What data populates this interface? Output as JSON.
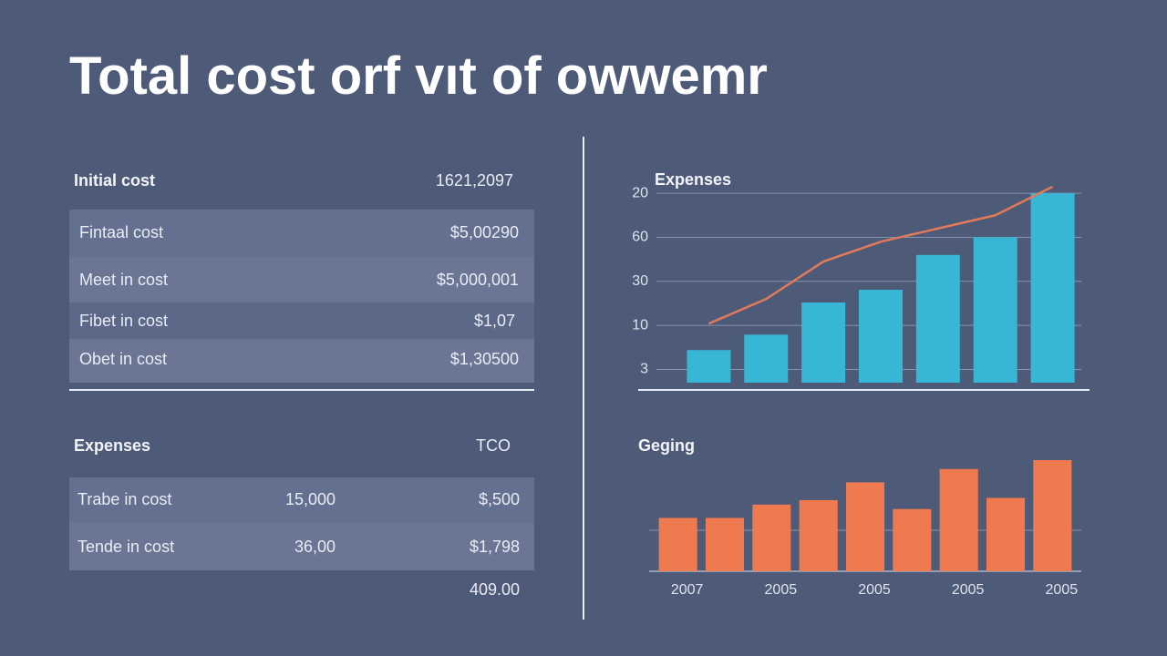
{
  "header": {
    "title": "Total cost orf vıt of owwemr"
  },
  "tables": [
    {
      "header": [
        "Initial cost",
        "1621,2097"
      ],
      "rows": [
        [
          "Fintaal cost",
          "$5,00290"
        ],
        [
          "Meet in cost",
          "$5,000,001"
        ],
        [
          "Fibet in cost",
          "$1,07"
        ],
        [
          "Obet in cost",
          "$1,30500"
        ]
      ]
    },
    {
      "header": [
        "Expenses",
        "TCO"
      ],
      "rows": [
        [
          "Trabe in cost",
          "15,000",
          "$,500"
        ],
        [
          "Tende in cost",
          "36,00",
          "$1,798"
        ]
      ],
      "footer": "409.00"
    }
  ],
  "chart_data": [
    {
      "type": "bar",
      "title": "Expenses",
      "categories": [
        null,
        null,
        null,
        null,
        null,
        null,
        null
      ],
      "series": [
        {
          "type": "bar",
          "color": "#38b6d6",
          "values": [
            0.44,
            0.79,
            1.52,
            1.81,
            2.6,
            3.0,
            4.0
          ]
        },
        {
          "type": "line",
          "color": "#e07a5a",
          "values": [
            1.04,
            1.6,
            2.45,
            2.9,
            3.2,
            3.5,
            4.15
          ]
        }
      ],
      "ylim": [
        -0.3,
        4.25
      ],
      "yticks": [
        {
          "value": 4,
          "label": "20"
        },
        {
          "value": 3,
          "label": "60"
        },
        {
          "value": 2,
          "label": "30"
        },
        {
          "value": 1,
          "label": "10"
        },
        {
          "value": 0,
          "label": "3"
        }
      ],
      "grid": true
    },
    {
      "type": "bar",
      "title": "Geging",
      "categories": [
        "2007",
        null,
        "2005",
        null,
        "2005",
        null,
        "2005",
        null,
        "2005"
      ],
      "color": "#f07a50",
      "values": [
        48,
        48,
        60,
        64,
        80,
        56,
        92,
        66,
        100
      ],
      "ylim": [
        0,
        100
      ]
    }
  ]
}
